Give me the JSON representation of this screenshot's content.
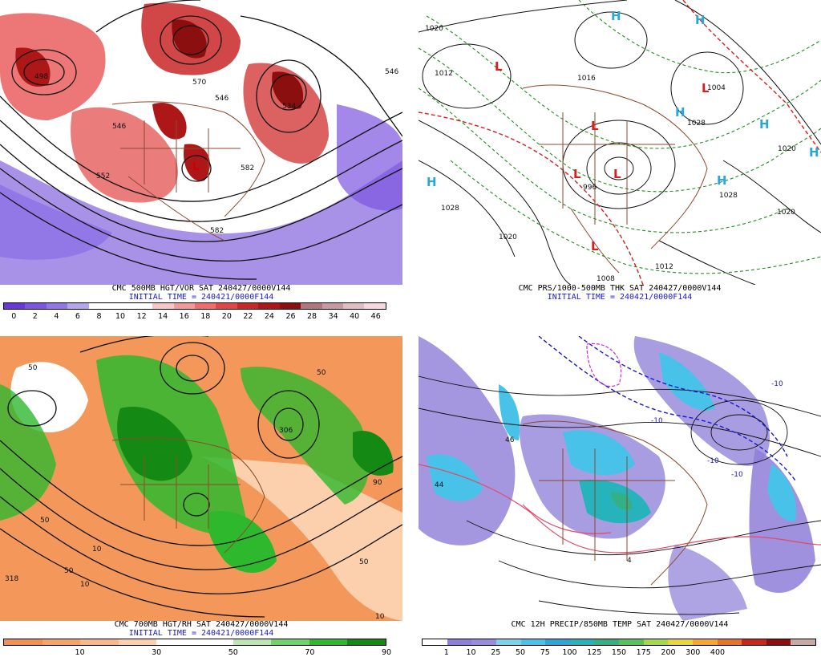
{
  "panels": [
    {
      "caption": "CMC 500MB HGT/VOR SAT 240427/0000V144",
      "initial_time": "INITIAL TIME = 240421/0000F144",
      "scale_colors": [
        "#6a38d8",
        "#7d55e0",
        "#9178e6",
        "#b5a5ef",
        "#ffffff",
        "#ffffff",
        "#ffffff",
        "#f4c8c8",
        "#f19a9a",
        "#ee6d6d",
        "#e14545",
        "#c92727",
        "#ad1717",
        "#8c0f0f",
        "#b1777a",
        "#c79aa0",
        "#e0bec4",
        "#f6d8de"
      ],
      "scale_labels": [
        "0",
        "2",
        "4",
        "6",
        "8",
        "10",
        "12",
        "14",
        "16",
        "18",
        "20",
        "22",
        "24",
        "26",
        "28",
        "34",
        "40",
        "46"
      ],
      "contour_labels": [
        "546",
        "582",
        "552",
        "546",
        "582",
        "570",
        "546",
        "498",
        "534"
      ]
    },
    {
      "caption": "CMC PRS/1000-500MB THK SAT 240427/0000V144",
      "initial_time": "INITIAL TIME = 240421/0000F144",
      "isobar_labels": [
        "1020",
        "1012",
        "1028",
        "1020",
        "1020",
        "1028",
        "996",
        "1012",
        "1028",
        "1020",
        "1004",
        "1016",
        "1008"
      ],
      "highs": [
        "H",
        "H",
        "H",
        "H",
        "H",
        "H",
        "H"
      ],
      "lows": [
        "L",
        "L",
        "L",
        "L",
        "L",
        "L"
      ]
    },
    {
      "caption": "CMC 700MB HGT/RH SAT 240427/0000V144",
      "initial_time": "INITIAL TIME = 240421/0000F144",
      "scale_colors": [
        "#f19150",
        "#f6a369",
        "#f9b889",
        "#fcd0ac",
        "#ffffff",
        "#ffffff",
        "#bde6b4",
        "#6fd26a",
        "#2eb82e",
        "#148a14"
      ],
      "scale_labels": [
        "10",
        "30",
        "50",
        "70",
        "90"
      ],
      "contour_labels": [
        "50",
        "50",
        "90",
        "318",
        "306",
        "50",
        "10",
        "10",
        "50",
        "50",
        "10"
      ]
    },
    {
      "caption": "CMC 12H PRECIP/850MB TEMP SAT 240427/0000V144",
      "scale_colors": [
        "#ffffff",
        "#8f7ed8",
        "#9a8cdc",
        "#7dd2ea",
        "#48c2e8",
        "#2aa7d6",
        "#26b3bb",
        "#34b086",
        "#58c25a",
        "#a6d84a",
        "#e8d63a",
        "#f4a830",
        "#e67326",
        "#c8281c",
        "#8e0e0e",
        "#c7a9a3"
      ],
      "scale_labels": [
        "1",
        "10",
        "25",
        "50",
        "75",
        "100",
        "125",
        "150",
        "175",
        "200",
        "300",
        "400"
      ],
      "contour_labels": [
        "44",
        "46",
        "-10",
        "-10",
        "-10",
        "-10",
        "4"
      ]
    }
  ]
}
